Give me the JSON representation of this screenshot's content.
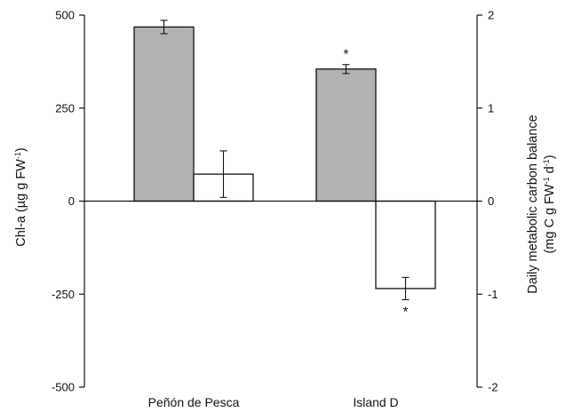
{
  "chart_data": {
    "type": "bar",
    "categories": [
      "Peñón de Pesca",
      "Island D"
    ],
    "left_axis": {
      "label_main": "Chl-a (µg g FW",
      "label_sup": "-1",
      "label_end": ")",
      "ylim": [
        -500,
        500
      ],
      "ticks": [
        "500",
        "250",
        "0",
        "-250",
        "-500"
      ],
      "tick_values": [
        500,
        250,
        0,
        -250,
        -500
      ]
    },
    "right_axis": {
      "label_line1": "Daily metabolic carbon balance",
      "label_line2_a": "(mg C g FW",
      "label_line2_sup1": "-1",
      "label_line2_b": " d",
      "label_line2_sup2": "-1",
      "label_line2_c": ")",
      "ylim": [
        -2,
        2
      ],
      "ticks": [
        "2",
        "1",
        "0",
        "-1",
        "-2"
      ],
      "tick_values": [
        2,
        1,
        0,
        -1,
        -2
      ]
    },
    "series": [
      {
        "axis": "left",
        "color": "#b3b3b3",
        "values": [
          468,
          355
        ],
        "errors": [
          18,
          12
        ],
        "significance": [
          "",
          "*"
        ]
      },
      {
        "axis": "right",
        "color": "#ffffff",
        "values": [
          0.29,
          -0.94
        ],
        "errors": [
          0.25,
          0.12
        ],
        "significance": [
          "",
          "*"
        ]
      }
    ],
    "legend": "none",
    "grid": false
  }
}
